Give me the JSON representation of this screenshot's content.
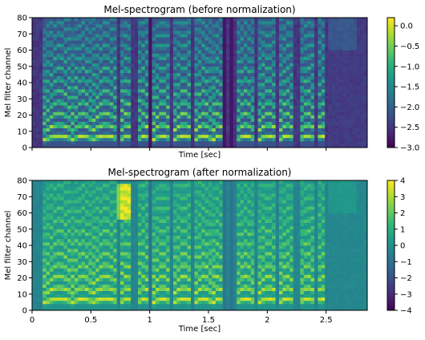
{
  "chart_data": [
    {
      "type": "heatmap",
      "title": "Mel-spectrogram (before normalization)",
      "xlabel": "Time [sec]",
      "ylabel": "Mel filter channel",
      "xlim": [
        0,
        2.85
      ],
      "ylim": [
        0,
        80
      ],
      "yticks": [
        0,
        10,
        20,
        30,
        40,
        50,
        60,
        70,
        80
      ],
      "xticks": [
        0,
        0.5,
        1,
        1.5,
        2,
        2.5
      ],
      "xtick_labels_visible": false,
      "colorbar": {
        "vmin": -3.0,
        "vmax": 0.2,
        "ticks": [
          0,
          -0.5,
          -1.0,
          -1.5,
          -2.0,
          -2.5,
          -3.0
        ],
        "tick_labels": [
          "0.0",
          "−0.5",
          "−1.0",
          "−1.5",
          "−2.0",
          "−2.5",
          "−3.0"
        ],
        "colormap": "viridis"
      }
    },
    {
      "type": "heatmap",
      "title": "Mel-spectrogram (after normalization)",
      "xlabel": "Time [sec]",
      "ylabel": "Mel filter channel",
      "xlim": [
        0,
        2.85
      ],
      "ylim": [
        0,
        80
      ],
      "yticks": [
        0,
        10,
        20,
        30,
        40,
        50,
        60,
        70,
        80
      ],
      "xticks": [
        0,
        0.5,
        1,
        1.5,
        2,
        2.5
      ],
      "xtick_labels": [
        "0",
        "0.5",
        "1",
        "1.5",
        "2",
        "2.5"
      ],
      "xtick_labels_visible": true,
      "colorbar": {
        "vmin": -4,
        "vmax": 4,
        "ticks": [
          4,
          3,
          2,
          1,
          0,
          -1,
          -2,
          -3,
          -4
        ],
        "tick_labels": [
          "4",
          "3",
          "2",
          "1",
          "0",
          "−1",
          "−2",
          "−3",
          "−4"
        ],
        "colormap": "viridis"
      }
    }
  ],
  "colors": {
    "viridis": [
      "#440154",
      "#482878",
      "#3e4989",
      "#31688e",
      "#26828e",
      "#1f9e89",
      "#35b779",
      "#6ece58",
      "#b5de2b",
      "#fde725"
    ]
  }
}
